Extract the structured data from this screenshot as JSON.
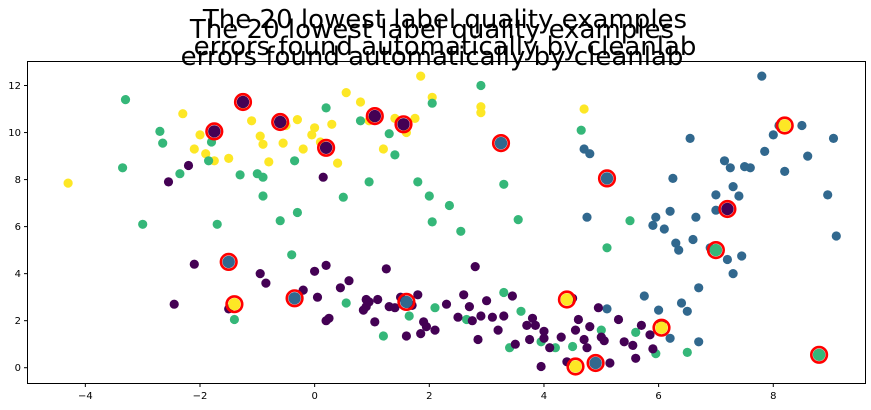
{
  "chart_data": {
    "type": "scatter",
    "title_lines": [
      [
        "The 20 lowest label quality examples",
        "The 20 lowest label quality examples"
      ],
      [
        "errors found automatically by cleanlab",
        "errors found automatically by cleanlab"
      ]
    ],
    "xlabel": "",
    "ylabel": "",
    "xlim": [
      -5.0,
      9.6
    ],
    "ylim": [
      -0.65,
      13.0
    ],
    "xticks": [
      -4,
      -2,
      0,
      2,
      4,
      6,
      8
    ],
    "yticks": [
      0,
      2,
      4,
      6,
      8,
      10,
      12
    ],
    "grid": false,
    "legend": "none",
    "class_colors": [
      "#440154",
      "#31688e",
      "#35b779",
      "#fde725"
    ],
    "highlight_color": "#ff0000",
    "points": [
      {
        "x": -4.3,
        "y": 7.85,
        "c": 3
      },
      {
        "x": -2.3,
        "y": 10.8,
        "c": 3
      },
      {
        "x": -2.1,
        "y": 9.3,
        "c": 3
      },
      {
        "x": -1.9,
        "y": 9.1,
        "c": 3
      },
      {
        "x": -1.75,
        "y": 8.8,
        "c": 3
      },
      {
        "x": -1.5,
        "y": 8.9,
        "c": 3
      },
      {
        "x": -1.25,
        "y": 11.2,
        "c": 3
      },
      {
        "x": -1.1,
        "y": 10.5,
        "c": 3
      },
      {
        "x": -0.95,
        "y": 9.85,
        "c": 3
      },
      {
        "x": -0.9,
        "y": 9.5,
        "c": 3
      },
      {
        "x": -0.8,
        "y": 8.75,
        "c": 3
      },
      {
        "x": -0.5,
        "y": 10.3,
        "c": 3
      },
      {
        "x": -0.3,
        "y": 10.55,
        "c": 3
      },
      {
        "x": -0.2,
        "y": 9.3,
        "c": 3
      },
      {
        "x": -0.05,
        "y": 9.9,
        "c": 3
      },
      {
        "x": 0.0,
        "y": 10.2,
        "c": 3
      },
      {
        "x": 0.1,
        "y": 9.6,
        "c": 3
      },
      {
        "x": 0.3,
        "y": 10.35,
        "c": 3
      },
      {
        "x": 0.4,
        "y": 8.7,
        "c": 3
      },
      {
        "x": 0.55,
        "y": 11.7,
        "c": 3
      },
      {
        "x": 0.8,
        "y": 11.3,
        "c": 3
      },
      {
        "x": 0.95,
        "y": 10.5,
        "c": 3
      },
      {
        "x": 1.2,
        "y": 9.3,
        "c": 3
      },
      {
        "x": 1.4,
        "y": 10.6,
        "c": 3
      },
      {
        "x": 1.6,
        "y": 10.0,
        "c": 3
      },
      {
        "x": 1.75,
        "y": 10.6,
        "c": 3
      },
      {
        "x": 1.85,
        "y": 12.4,
        "c": 3
      },
      {
        "x": 2.05,
        "y": 11.5,
        "c": 3
      },
      {
        "x": 2.9,
        "y": 11.1,
        "c": 3
      },
      {
        "x": 2.9,
        "y": 10.85,
        "c": 3
      },
      {
        "x": 4.7,
        "y": 11.0,
        "c": 3
      },
      {
        "x": -2.0,
        "y": 9.9,
        "c": 3
      },
      {
        "x": -0.55,
        "y": 9.55,
        "c": 3
      },
      {
        "x": -3.3,
        "y": 11.4,
        "c": 2
      },
      {
        "x": -3.35,
        "y": 8.5,
        "c": 2
      },
      {
        "x": -3.0,
        "y": 6.1,
        "c": 2
      },
      {
        "x": -2.7,
        "y": 10.05,
        "c": 2
      },
      {
        "x": -2.65,
        "y": 9.55,
        "c": 2
      },
      {
        "x": -2.35,
        "y": 8.25,
        "c": 2
      },
      {
        "x": -1.85,
        "y": 8.8,
        "c": 2
      },
      {
        "x": -1.7,
        "y": 6.1,
        "c": 2
      },
      {
        "x": -1.3,
        "y": 8.2,
        "c": 2
      },
      {
        "x": -1.0,
        "y": 8.25,
        "c": 2
      },
      {
        "x": -0.9,
        "y": 8.1,
        "c": 2
      },
      {
        "x": -0.9,
        "y": 7.3,
        "c": 2
      },
      {
        "x": -0.6,
        "y": 6.25,
        "c": 2
      },
      {
        "x": -0.35,
        "y": 8.8,
        "c": 2
      },
      {
        "x": -0.3,
        "y": 6.6,
        "c": 2
      },
      {
        "x": 0.2,
        "y": 11.05,
        "c": 2
      },
      {
        "x": 0.5,
        "y": 7.25,
        "c": 2
      },
      {
        "x": 0.8,
        "y": 10.5,
        "c": 2
      },
      {
        "x": 0.95,
        "y": 7.9,
        "c": 2
      },
      {
        "x": 1.3,
        "y": 9.95,
        "c": 2
      },
      {
        "x": 1.4,
        "y": 9.05,
        "c": 2
      },
      {
        "x": 1.8,
        "y": 7.9,
        "c": 2
      },
      {
        "x": 2.0,
        "y": 7.3,
        "c": 2
      },
      {
        "x": 2.05,
        "y": 11.25,
        "c": 2
      },
      {
        "x": 2.35,
        "y": 6.9,
        "c": 2
      },
      {
        "x": 2.55,
        "y": 5.8,
        "c": 2
      },
      {
        "x": 2.9,
        "y": 12.0,
        "c": 2
      },
      {
        "x": 3.3,
        "y": 7.8,
        "c": 2
      },
      {
        "x": 3.55,
        "y": 6.3,
        "c": 2
      },
      {
        "x": 4.65,
        "y": 10.1,
        "c": 2
      },
      {
        "x": 5.1,
        "y": 5.1,
        "c": 2
      },
      {
        "x": 5.5,
        "y": 6.25,
        "c": 2
      },
      {
        "x": 6.5,
        "y": 0.65,
        "c": 2
      },
      {
        "x": -1.8,
        "y": 9.6,
        "c": 2
      },
      {
        "x": 2.05,
        "y": 6.2,
        "c": 2
      },
      {
        "x": -0.4,
        "y": 4.8,
        "c": 2
      },
      {
        "x": 0.55,
        "y": 2.75,
        "c": 2
      },
      {
        "x": 1.2,
        "y": 1.35,
        "c": 2
      },
      {
        "x": 1.65,
        "y": 2.2,
        "c": 2
      },
      {
        "x": 2.1,
        "y": 2.55,
        "c": 2
      },
      {
        "x": 2.65,
        "y": 2.05,
        "c": 2
      },
      {
        "x": 3.3,
        "y": 3.2,
        "c": 2
      },
      {
        "x": 3.6,
        "y": 2.4,
        "c": 2
      },
      {
        "x": 3.95,
        "y": 1.1,
        "c": 2
      },
      {
        "x": 4.2,
        "y": 0.85,
        "c": 2
      },
      {
        "x": 4.5,
        "y": 0.9,
        "c": 2
      },
      {
        "x": 5.0,
        "y": 1.6,
        "c": 2
      },
      {
        "x": 5.6,
        "y": 1.5,
        "c": 2
      },
      {
        "x": 5.95,
        "y": 0.6,
        "c": 2
      },
      {
        "x": -1.4,
        "y": 2.05,
        "c": 2
      },
      {
        "x": 3.4,
        "y": 0.85,
        "c": 2
      },
      {
        "x": 4.7,
        "y": 9.3,
        "c": 1
      },
      {
        "x": 4.75,
        "y": 6.4,
        "c": 1
      },
      {
        "x": 4.8,
        "y": 9.1,
        "c": 1
      },
      {
        "x": 5.9,
        "y": 6.05,
        "c": 1
      },
      {
        "x": 5.95,
        "y": 6.4,
        "c": 1
      },
      {
        "x": 6.1,
        "y": 5.9,
        "c": 1
      },
      {
        "x": 6.2,
        "y": 6.65,
        "c": 1
      },
      {
        "x": 6.25,
        "y": 8.05,
        "c": 1
      },
      {
        "x": 6.3,
        "y": 5.3,
        "c": 1
      },
      {
        "x": 6.35,
        "y": 5.0,
        "c": 1
      },
      {
        "x": 6.55,
        "y": 9.75,
        "c": 1
      },
      {
        "x": 6.6,
        "y": 5.45,
        "c": 1
      },
      {
        "x": 6.65,
        "y": 6.4,
        "c": 1
      },
      {
        "x": 6.7,
        "y": 3.4,
        "c": 1
      },
      {
        "x": 6.9,
        "y": 5.1,
        "c": 1
      },
      {
        "x": 7.0,
        "y": 7.35,
        "c": 1
      },
      {
        "x": 7.0,
        "y": 6.7,
        "c": 1
      },
      {
        "x": 7.15,
        "y": 8.8,
        "c": 1
      },
      {
        "x": 7.2,
        "y": 4.6,
        "c": 1
      },
      {
        "x": 7.25,
        "y": 8.5,
        "c": 1
      },
      {
        "x": 7.3,
        "y": 7.7,
        "c": 1
      },
      {
        "x": 7.3,
        "y": 4.0,
        "c": 1
      },
      {
        "x": 7.45,
        "y": 4.75,
        "c": 1
      },
      {
        "x": 7.5,
        "y": 8.55,
        "c": 1
      },
      {
        "x": 7.6,
        "y": 8.5,
        "c": 1
      },
      {
        "x": 7.8,
        "y": 12.4,
        "c": 1
      },
      {
        "x": 7.85,
        "y": 9.2,
        "c": 1
      },
      {
        "x": 8.0,
        "y": 9.9,
        "c": 1
      },
      {
        "x": 8.1,
        "y": 10.3,
        "c": 1
      },
      {
        "x": 8.2,
        "y": 8.35,
        "c": 1
      },
      {
        "x": 8.5,
        "y": 10.3,
        "c": 1
      },
      {
        "x": 8.6,
        "y": 9.0,
        "c": 1
      },
      {
        "x": 8.95,
        "y": 7.35,
        "c": 1
      },
      {
        "x": 9.05,
        "y": 9.75,
        "c": 1
      },
      {
        "x": 9.1,
        "y": 5.6,
        "c": 1
      },
      {
        "x": 5.75,
        "y": 3.05,
        "c": 1
      },
      {
        "x": 6.0,
        "y": 2.45,
        "c": 1
      },
      {
        "x": 6.4,
        "y": 2.75,
        "c": 1
      },
      {
        "x": 6.5,
        "y": 2.4,
        "c": 1
      },
      {
        "x": 6.7,
        "y": 1.1,
        "c": 1
      },
      {
        "x": 6.2,
        "y": 1.25,
        "c": 1
      },
      {
        "x": 5.1,
        "y": 2.5,
        "c": 1
      },
      {
        "x": 7.4,
        "y": 7.3,
        "c": 1
      },
      {
        "x": -2.55,
        "y": 7.9,
        "c": 0
      },
      {
        "x": -2.45,
        "y": 2.7,
        "c": 0
      },
      {
        "x": -2.2,
        "y": 8.6,
        "c": 0
      },
      {
        "x": -2.1,
        "y": 4.4,
        "c": 0
      },
      {
        "x": -1.5,
        "y": 2.5,
        "c": 0
      },
      {
        "x": -0.95,
        "y": 4.0,
        "c": 0
      },
      {
        "x": -0.85,
        "y": 3.6,
        "c": 0
      },
      {
        "x": -0.2,
        "y": 3.3,
        "c": 0
      },
      {
        "x": 0.0,
        "y": 4.1,
        "c": 0
      },
      {
        "x": 0.05,
        "y": 3.0,
        "c": 0
      },
      {
        "x": 0.15,
        "y": 8.1,
        "c": 0
      },
      {
        "x": 0.2,
        "y": 4.35,
        "c": 0
      },
      {
        "x": 0.2,
        "y": 2.0,
        "c": 0
      },
      {
        "x": 0.25,
        "y": 2.1,
        "c": 0
      },
      {
        "x": 0.45,
        "y": 3.4,
        "c": 0
      },
      {
        "x": 0.6,
        "y": 3.7,
        "c": 0
      },
      {
        "x": 0.85,
        "y": 2.45,
        "c": 0
      },
      {
        "x": 0.9,
        "y": 2.6,
        "c": 0
      },
      {
        "x": 0.95,
        "y": 2.8,
        "c": 0
      },
      {
        "x": 1.05,
        "y": 1.95,
        "c": 0
      },
      {
        "x": 1.1,
        "y": 2.9,
        "c": 0
      },
      {
        "x": 1.25,
        "y": 4.2,
        "c": 0
      },
      {
        "x": 1.3,
        "y": 2.6,
        "c": 0
      },
      {
        "x": 1.4,
        "y": 2.55,
        "c": 0
      },
      {
        "x": 1.5,
        "y": 3.0,
        "c": 0
      },
      {
        "x": 1.6,
        "y": 1.35,
        "c": 0
      },
      {
        "x": 1.7,
        "y": 2.65,
        "c": 0
      },
      {
        "x": 1.8,
        "y": 3.1,
        "c": 0
      },
      {
        "x": 1.85,
        "y": 1.45,
        "c": 0
      },
      {
        "x": 1.95,
        "y": 1.75,
        "c": 0
      },
      {
        "x": 2.1,
        "y": 1.6,
        "c": 0
      },
      {
        "x": 2.3,
        "y": 2.7,
        "c": 0
      },
      {
        "x": 2.5,
        "y": 2.15,
        "c": 0
      },
      {
        "x": 2.6,
        "y": 3.1,
        "c": 0
      },
      {
        "x": 2.7,
        "y": 2.6,
        "c": 0
      },
      {
        "x": 2.75,
        "y": 2.0,
        "c": 0
      },
      {
        "x": 2.8,
        "y": 4.3,
        "c": 0
      },
      {
        "x": 2.85,
        "y": 1.2,
        "c": 0
      },
      {
        "x": 2.9,
        "y": 2.2,
        "c": 0
      },
      {
        "x": 3.0,
        "y": 2.85,
        "c": 0
      },
      {
        "x": 3.1,
        "y": 2.15,
        "c": 0
      },
      {
        "x": 3.2,
        "y": 1.6,
        "c": 0
      },
      {
        "x": 3.3,
        "y": 2.2,
        "c": 0
      },
      {
        "x": 3.45,
        "y": 3.05,
        "c": 0
      },
      {
        "x": 3.5,
        "y": 1.0,
        "c": 0
      },
      {
        "x": 3.7,
        "y": 1.8,
        "c": 0
      },
      {
        "x": 3.75,
        "y": 1.2,
        "c": 0
      },
      {
        "x": 3.8,
        "y": 2.1,
        "c": 0
      },
      {
        "x": 3.85,
        "y": 1.8,
        "c": 0
      },
      {
        "x": 3.95,
        "y": 0.05,
        "c": 0
      },
      {
        "x": 4.0,
        "y": 1.55,
        "c": 0
      },
      {
        "x": 4.1,
        "y": 0.85,
        "c": 0
      },
      {
        "x": 4.3,
        "y": 1.3,
        "c": 0
      },
      {
        "x": 4.4,
        "y": 0.25,
        "c": 0
      },
      {
        "x": 4.5,
        "y": 2.95,
        "c": 0
      },
      {
        "x": 4.55,
        "y": 1.6,
        "c": 0
      },
      {
        "x": 4.6,
        "y": 2.05,
        "c": 0
      },
      {
        "x": 4.7,
        "y": 1.2,
        "c": 0
      },
      {
        "x": 4.75,
        "y": 0.85,
        "c": 0
      },
      {
        "x": 4.8,
        "y": 1.75,
        "c": 0
      },
      {
        "x": 4.95,
        "y": 2.55,
        "c": 0
      },
      {
        "x": 5.0,
        "y": 1.3,
        "c": 0
      },
      {
        "x": 5.05,
        "y": 1.15,
        "c": 0
      },
      {
        "x": 5.15,
        "y": 0.2,
        "c": 0
      },
      {
        "x": 5.3,
        "y": 2.05,
        "c": 0
      },
      {
        "x": 5.4,
        "y": 1.1,
        "c": 0
      },
      {
        "x": 5.55,
        "y": 0.95,
        "c": 0
      },
      {
        "x": 5.6,
        "y": 0.4,
        "c": 0
      },
      {
        "x": 5.7,
        "y": 1.8,
        "c": 0
      },
      {
        "x": 5.85,
        "y": 1.4,
        "c": 0
      },
      {
        "x": 5.9,
        "y": 0.8,
        "c": 0
      },
      {
        "x": 6.05,
        "y": 1.85,
        "c": 0
      },
      {
        "x": 4.0,
        "y": 1.25,
        "c": 0
      },
      {
        "x": 1.9,
        "y": 1.95,
        "c": 0
      },
      {
        "x": 0.9,
        "y": 2.9,
        "c": 0
      }
    ],
    "highlights": [
      {
        "x": -1.25,
        "y": 11.3,
        "c": 0
      },
      {
        "x": -1.75,
        "y": 10.05,
        "c": 0
      },
      {
        "x": -0.6,
        "y": 10.45,
        "c": 0
      },
      {
        "x": 1.05,
        "y": 10.7,
        "c": 0
      },
      {
        "x": 1.55,
        "y": 10.35,
        "c": 0
      },
      {
        "x": 0.2,
        "y": 9.35,
        "c": 0
      },
      {
        "x": 3.25,
        "y": 9.55,
        "c": 1
      },
      {
        "x": 5.1,
        "y": 8.05,
        "c": 1
      },
      {
        "x": 8.2,
        "y": 10.3,
        "c": 3
      },
      {
        "x": 7.2,
        "y": 6.75,
        "c": 0
      },
      {
        "x": 7.0,
        "y": 5.0,
        "c": 2
      },
      {
        "x": -1.5,
        "y": 4.5,
        "c": 1
      },
      {
        "x": -1.4,
        "y": 2.7,
        "c": 3
      },
      {
        "x": -0.35,
        "y": 2.95,
        "c": 1
      },
      {
        "x": 1.6,
        "y": 2.8,
        "c": 1
      },
      {
        "x": 4.4,
        "y": 2.9,
        "c": 3
      },
      {
        "x": 6.05,
        "y": 1.7,
        "c": 3
      },
      {
        "x": 4.55,
        "y": 0.05,
        "c": 3
      },
      {
        "x": 4.9,
        "y": 0.2,
        "c": 1
      },
      {
        "x": 8.8,
        "y": 0.55,
        "c": 2
      }
    ]
  }
}
